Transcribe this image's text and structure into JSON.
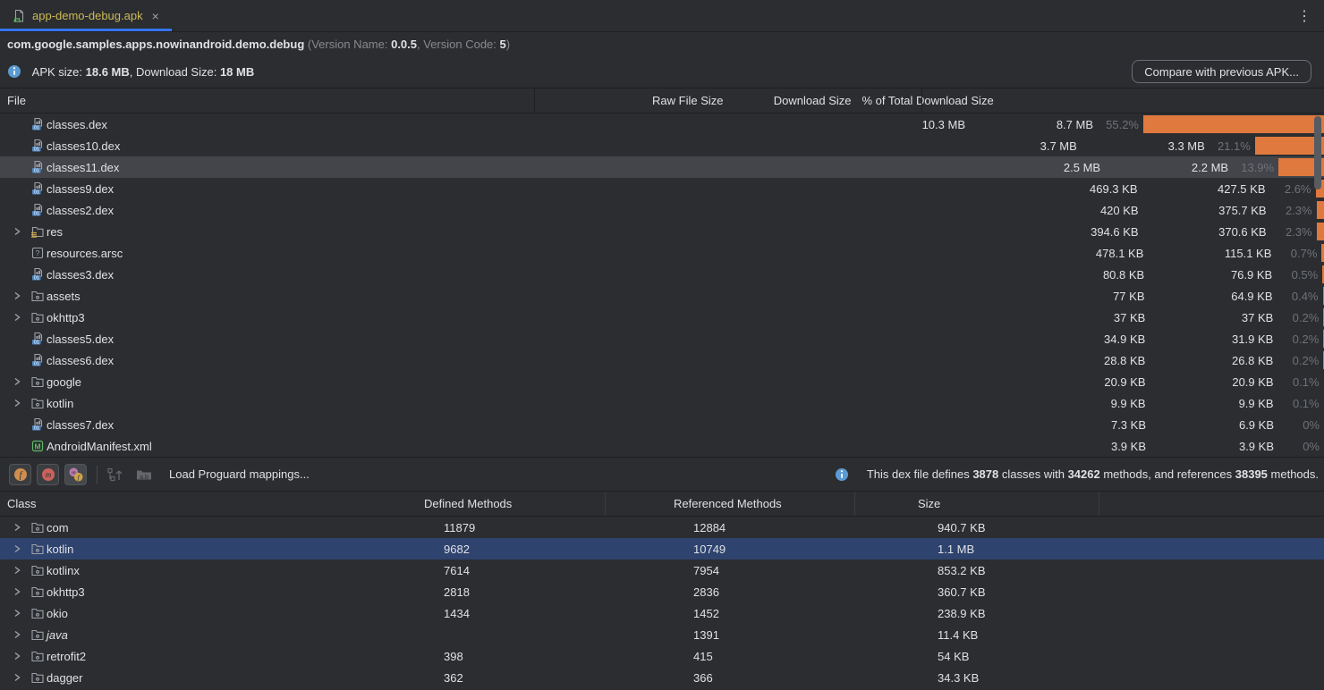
{
  "tab": {
    "title": "app-demo-debug.apk",
    "close_glyph": "×",
    "kebab_glyph": "⋮"
  },
  "header": {
    "package": "com.google.samples.apps.nowinandroid.demo.debug",
    "version_prefix": " (Version Name: ",
    "version_name": "0.0.5",
    "version_mid": ", Version Code: ",
    "version_code": "5",
    "version_suffix": ")"
  },
  "apk_info": {
    "label_apk": "APK size: ",
    "apk_size": "18.6 MB",
    "label_download": ", Download Size: ",
    "download_size": "18 MB",
    "compare_button": "Compare with previous APK..."
  },
  "file_table": {
    "columns": {
      "file": "File",
      "raw": "Raw File Size",
      "download": "Download Size",
      "pct": "% of Total Download Size"
    },
    "rows": [
      {
        "name": "classes.dex",
        "icon": "dex",
        "expandable": false,
        "selected": false,
        "raw": "10.3 MB",
        "download": "8.7 MB",
        "pct": "55.2%",
        "pct_value": 55.2
      },
      {
        "name": "classes10.dex",
        "icon": "dex",
        "expandable": false,
        "selected": false,
        "raw": "3.7 MB",
        "download": "3.3 MB",
        "pct": "21.1%",
        "pct_value": 21.1
      },
      {
        "name": "classes11.dex",
        "icon": "dex",
        "expandable": false,
        "selected": true,
        "raw": "2.5 MB",
        "download": "2.2 MB",
        "pct": "13.9%",
        "pct_value": 13.9
      },
      {
        "name": "classes9.dex",
        "icon": "dex",
        "expandable": false,
        "selected": false,
        "raw": "469.3 KB",
        "download": "427.5 KB",
        "pct": "2.6%",
        "pct_value": 2.6
      },
      {
        "name": "classes2.dex",
        "icon": "dex",
        "expandable": false,
        "selected": false,
        "raw": "420 KB",
        "download": "375.7 KB",
        "pct": "2.3%",
        "pct_value": 2.3
      },
      {
        "name": "res",
        "icon": "folder-res",
        "expandable": true,
        "selected": false,
        "raw": "394.6 KB",
        "download": "370.6 KB",
        "pct": "2.3%",
        "pct_value": 2.3
      },
      {
        "name": "resources.arsc",
        "icon": "arsc",
        "expandable": false,
        "selected": false,
        "raw": "478.1 KB",
        "download": "115.1 KB",
        "pct": "0.7%",
        "pct_value": 0.7
      },
      {
        "name": "classes3.dex",
        "icon": "dex",
        "expandable": false,
        "selected": false,
        "raw": "80.8 KB",
        "download": "76.9 KB",
        "pct": "0.5%",
        "pct_value": 0.5
      },
      {
        "name": "assets",
        "icon": "folder",
        "expandable": true,
        "selected": false,
        "raw": "77 KB",
        "download": "64.9 KB",
        "pct": "0.4%",
        "pct_value": 0.4
      },
      {
        "name": "okhttp3",
        "icon": "folder",
        "expandable": true,
        "selected": false,
        "raw": "37 KB",
        "download": "37 KB",
        "pct": "0.2%",
        "pct_value": 0.2
      },
      {
        "name": "classes5.dex",
        "icon": "dex",
        "expandable": false,
        "selected": false,
        "raw": "34.9 KB",
        "download": "31.9 KB",
        "pct": "0.2%",
        "pct_value": 0.2
      },
      {
        "name": "classes6.dex",
        "icon": "dex",
        "expandable": false,
        "selected": false,
        "raw": "28.8 KB",
        "download": "26.8 KB",
        "pct": "0.2%",
        "pct_value": 0.2
      },
      {
        "name": "google",
        "icon": "folder",
        "expandable": true,
        "selected": false,
        "raw": "20.9 KB",
        "download": "20.9 KB",
        "pct": "0.1%",
        "pct_value": 0.1
      },
      {
        "name": "kotlin",
        "icon": "folder",
        "expandable": true,
        "selected": false,
        "raw": "9.9 KB",
        "download": "9.9 KB",
        "pct": "0.1%",
        "pct_value": 0.1
      },
      {
        "name": "classes7.dex",
        "icon": "dex",
        "expandable": false,
        "selected": false,
        "raw": "7.3 KB",
        "download": "6.9 KB",
        "pct": "0%",
        "pct_value": 0
      },
      {
        "name": "AndroidManifest.xml",
        "icon": "manifest",
        "expandable": false,
        "selected": false,
        "raw": "3.9 KB",
        "download": "3.9 KB",
        "pct": "0%",
        "pct_value": 0
      }
    ]
  },
  "toolbar": {
    "load_mappings_label": "Load Proguard mappings...",
    "toggle_fields": "show-fields",
    "toggle_methods": "show-methods",
    "toggle_references": "show-referenced",
    "disabled_expand": "expand-nodes",
    "disabled_names": "abbreviate-package-names"
  },
  "dex_info": {
    "prefix": "This dex file defines ",
    "classes": "3878",
    "mid1": " classes with ",
    "methods": "34262",
    "mid2": " methods, and references ",
    "references": "38395",
    "suffix": " methods."
  },
  "class_table": {
    "columns": {
      "class": "Class",
      "defined": "Defined Methods",
      "referenced": "Referenced Methods",
      "size": "Size"
    },
    "rows": [
      {
        "name": "com",
        "italic": false,
        "selected": false,
        "defined": "11879",
        "referenced": "12884",
        "size": "940.7 KB"
      },
      {
        "name": "kotlin",
        "italic": false,
        "selected": true,
        "defined": "9682",
        "referenced": "10749",
        "size": "1.1 MB"
      },
      {
        "name": "kotlinx",
        "italic": false,
        "selected": false,
        "defined": "7614",
        "referenced": "7954",
        "size": "853.2 KB"
      },
      {
        "name": "okhttp3",
        "italic": false,
        "selected": false,
        "defined": "2818",
        "referenced": "2836",
        "size": "360.7 KB"
      },
      {
        "name": "okio",
        "italic": false,
        "selected": false,
        "defined": "1434",
        "referenced": "1452",
        "size": "238.9 KB"
      },
      {
        "name": "java",
        "italic": true,
        "selected": false,
        "defined": "",
        "referenced": "1391",
        "size": "11.4 KB"
      },
      {
        "name": "retrofit2",
        "italic": false,
        "selected": false,
        "defined": "398",
        "referenced": "415",
        "size": "54 KB"
      },
      {
        "name": "dagger",
        "italic": false,
        "selected": false,
        "defined": "362",
        "referenced": "366",
        "size": "34.3 KB"
      }
    ]
  },
  "colors": {
    "background": "#2b2d30",
    "divider": "#1e1f22",
    "text": "#dfe1e5",
    "muted": "#87898e",
    "percent_text": "#6e7177",
    "bar_orange": "#e0793e",
    "selection_blue": "#2e436e",
    "selection_gray": "#43454a",
    "tab_yellow": "#ccb957",
    "tab_indicator": "#3574f0"
  }
}
